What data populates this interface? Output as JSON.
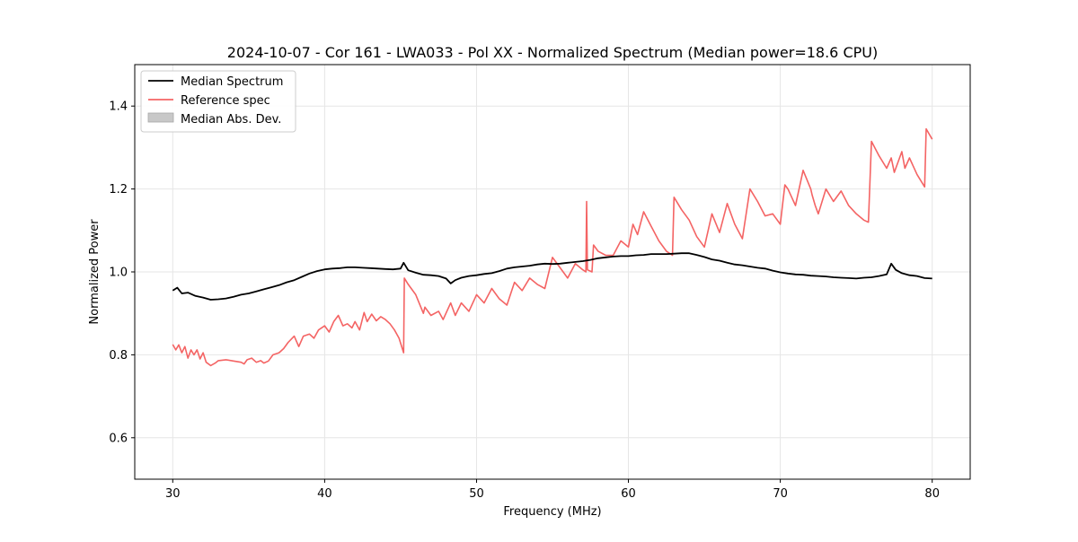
{
  "chart_data": {
    "type": "line",
    "title": "2024-10-07 - Cor 161 - LWA033 - Pol XX - Normalized Spectrum (Median power=18.6 CPU)",
    "xlabel": "Frequency (MHz)",
    "ylabel": "Normalized Power",
    "xlim": [
      27.5,
      82.5
    ],
    "ylim": [
      0.5,
      1.5
    ],
    "xticks": [
      30,
      40,
      50,
      60,
      70,
      80
    ],
    "yticks": [
      0.6,
      0.8,
      1.0,
      1.2,
      1.4
    ],
    "xtick_labels": [
      "30",
      "40",
      "50",
      "60",
      "70",
      "80"
    ],
    "ytick_labels": [
      "0.6",
      "0.8",
      "1.0",
      "1.2",
      "1.4"
    ],
    "grid": true,
    "legend_position": "upper-left",
    "legend": [
      {
        "label": "Median Spectrum",
        "kind": "line",
        "color": "#000000"
      },
      {
        "label": "Reference spec",
        "kind": "line",
        "color": "#f46464"
      },
      {
        "label": "Median Abs. Dev.",
        "kind": "patch",
        "color": "#c8c8c8"
      }
    ],
    "series": [
      {
        "name": "Median Spectrum",
        "color": "#000000",
        "x": [
          30.0,
          30.3,
          30.6,
          31.0,
          31.5,
          32.0,
          32.5,
          33.0,
          33.5,
          34.0,
          34.5,
          35.0,
          35.5,
          36.0,
          36.5,
          37.0,
          37.5,
          38.0,
          38.5,
          39.0,
          39.5,
          40.0,
          40.5,
          41.0,
          41.5,
          42.0,
          42.5,
          43.0,
          43.5,
          44.0,
          44.5,
          45.0,
          45.2,
          45.5,
          46.0,
          46.5,
          47.0,
          47.5,
          48.0,
          48.3,
          48.6,
          49.0,
          49.5,
          50.0,
          50.5,
          51.0,
          51.5,
          52.0,
          52.5,
          53.0,
          53.5,
          54.0,
          54.5,
          55.0,
          55.5,
          56.0,
          56.5,
          57.0,
          57.5,
          58.0,
          58.5,
          59.0,
          59.5,
          60.0,
          60.5,
          61.0,
          61.5,
          62.0,
          62.5,
          63.0,
          63.5,
          64.0,
          64.5,
          65.0,
          65.5,
          66.0,
          66.5,
          67.0,
          67.5,
          68.0,
          68.5,
          69.0,
          69.5,
          70.0,
          70.5,
          71.0,
          71.5,
          72.0,
          72.5,
          73.0,
          73.5,
          74.0,
          74.5,
          75.0,
          75.5,
          76.0,
          76.5,
          77.0,
          77.3,
          77.6,
          78.0,
          78.5,
          79.0,
          79.5,
          80.0
        ],
        "values": [
          0.955,
          0.962,
          0.948,
          0.95,
          0.942,
          0.938,
          0.933,
          0.934,
          0.936,
          0.94,
          0.945,
          0.948,
          0.953,
          0.958,
          0.963,
          0.968,
          0.975,
          0.98,
          0.988,
          0.996,
          1.002,
          1.006,
          1.008,
          1.009,
          1.011,
          1.011,
          1.01,
          1.009,
          1.008,
          1.007,
          1.006,
          1.008,
          1.022,
          1.004,
          0.998,
          0.993,
          0.992,
          0.99,
          0.984,
          0.972,
          0.98,
          0.986,
          0.99,
          0.992,
          0.995,
          0.997,
          1.002,
          1.008,
          1.011,
          1.013,
          1.015,
          1.018,
          1.02,
          1.019,
          1.02,
          1.022,
          1.024,
          1.026,
          1.029,
          1.033,
          1.035,
          1.037,
          1.038,
          1.038,
          1.04,
          1.041,
          1.043,
          1.043,
          1.043,
          1.044,
          1.045,
          1.045,
          1.041,
          1.036,
          1.03,
          1.027,
          1.022,
          1.018,
          1.016,
          1.013,
          1.01,
          1.008,
          1.003,
          0.999,
          0.996,
          0.994,
          0.993,
          0.991,
          0.99,
          0.989,
          0.987,
          0.986,
          0.985,
          0.984,
          0.986,
          0.987,
          0.99,
          0.994,
          1.02,
          1.005,
          0.997,
          0.992,
          0.99,
          0.985,
          0.984
        ]
      },
      {
        "name": "Reference spec",
        "color": "#f46464",
        "x": [
          30.0,
          30.2,
          30.4,
          30.6,
          30.8,
          31.0,
          31.2,
          31.4,
          31.6,
          31.8,
          32.0,
          32.2,
          32.5,
          32.8,
          33.0,
          33.5,
          34.0,
          34.5,
          34.7,
          34.9,
          35.2,
          35.5,
          35.8,
          36.0,
          36.3,
          36.6,
          37.0,
          37.3,
          37.6,
          38.0,
          38.3,
          38.6,
          39.0,
          39.3,
          39.6,
          40.0,
          40.3,
          40.6,
          40.9,
          41.2,
          41.5,
          41.8,
          42.0,
          42.3,
          42.6,
          42.8,
          43.1,
          43.4,
          43.7,
          44.0,
          44.3,
          44.6,
          44.9,
          45.2,
          45.25,
          45.5,
          46.0,
          46.5,
          46.6,
          47.0,
          47.5,
          47.8,
          48.3,
          48.6,
          49.0,
          49.5,
          50.0,
          50.5,
          51.0,
          51.5,
          52.0,
          52.5,
          53.0,
          53.5,
          54.0,
          54.5,
          55.0,
          55.5,
          56.0,
          56.5,
          57.0,
          57.2,
          57.25,
          57.3,
          57.6,
          57.7,
          58.0,
          58.5,
          59.0,
          59.5,
          60.0,
          60.3,
          60.6,
          61.0,
          61.5,
          62.0,
          62.5,
          62.9,
          63.0,
          63.5,
          64.0,
          64.5,
          65.0,
          65.5,
          66.0,
          66.5,
          67.0,
          67.5,
          68.0,
          68.5,
          69.0,
          69.5,
          70.0,
          70.3,
          70.5,
          71.0,
          71.5,
          72.0,
          72.1,
          72.3,
          72.5,
          73.0,
          73.5,
          74.0,
          74.5,
          75.0,
          75.5,
          75.8,
          76.0,
          76.5,
          77.0,
          77.3,
          77.5,
          78.0,
          78.2,
          78.5,
          79.0,
          79.5,
          79.6,
          80.0
        ],
        "values": [
          0.825,
          0.812,
          0.824,
          0.805,
          0.82,
          0.792,
          0.812,
          0.8,
          0.812,
          0.79,
          0.805,
          0.782,
          0.774,
          0.78,
          0.786,
          0.788,
          0.785,
          0.782,
          0.778,
          0.788,
          0.792,
          0.782,
          0.786,
          0.78,
          0.785,
          0.8,
          0.805,
          0.815,
          0.83,
          0.845,
          0.82,
          0.845,
          0.85,
          0.84,
          0.86,
          0.87,
          0.855,
          0.88,
          0.895,
          0.87,
          0.875,
          0.865,
          0.88,
          0.86,
          0.902,
          0.88,
          0.898,
          0.882,
          0.892,
          0.885,
          0.875,
          0.86,
          0.84,
          0.805,
          0.985,
          0.97,
          0.945,
          0.9,
          0.915,
          0.895,
          0.905,
          0.885,
          0.925,
          0.895,
          0.925,
          0.905,
          0.945,
          0.925,
          0.96,
          0.935,
          0.92,
          0.975,
          0.955,
          0.985,
          0.97,
          0.96,
          1.035,
          1.01,
          0.985,
          1.02,
          1.005,
          1.0,
          1.17,
          1.005,
          1.0,
          1.065,
          1.05,
          1.04,
          1.04,
          1.075,
          1.06,
          1.115,
          1.09,
          1.145,
          1.11,
          1.075,
          1.05,
          1.04,
          1.18,
          1.15,
          1.125,
          1.085,
          1.06,
          1.14,
          1.095,
          1.165,
          1.115,
          1.08,
          1.2,
          1.17,
          1.135,
          1.14,
          1.115,
          1.21,
          1.2,
          1.16,
          1.245,
          1.2,
          1.185,
          1.16,
          1.14,
          1.2,
          1.17,
          1.195,
          1.16,
          1.14,
          1.125,
          1.12,
          1.315,
          1.28,
          1.25,
          1.275,
          1.24,
          1.29,
          1.25,
          1.275,
          1.235,
          1.205,
          1.345,
          1.32
        ]
      }
    ]
  }
}
